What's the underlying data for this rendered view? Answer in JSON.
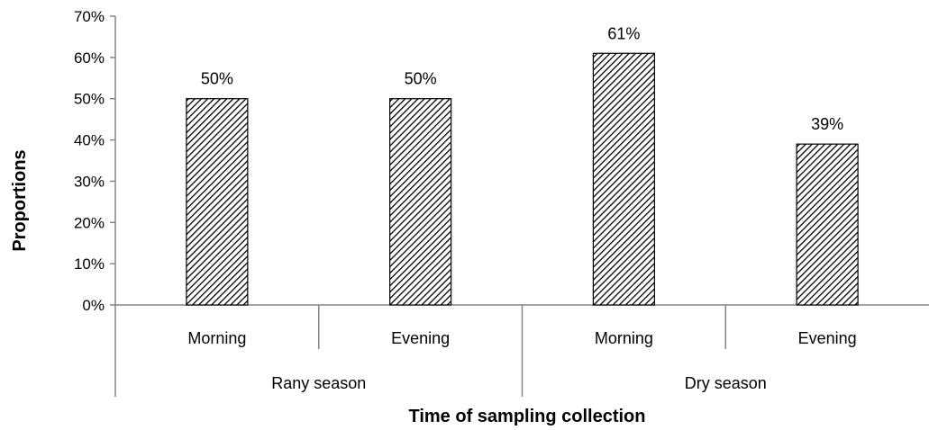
{
  "chart_data": {
    "type": "bar",
    "categories": [
      "Morning",
      "Evening",
      "Morning",
      "Evening"
    ],
    "groups": [
      {
        "label": "Rany season",
        "span": [
          0,
          1
        ]
      },
      {
        "label": "Dry season",
        "span": [
          2,
          3
        ]
      }
    ],
    "values": [
      0.5,
      0.5,
      0.61,
      0.39
    ],
    "data_labels": [
      "50%",
      "50%",
      "61%",
      "39%"
    ],
    "y_ticks": [
      "0%",
      "10%",
      "20%",
      "30%",
      "40%",
      "50%",
      "60%",
      "70%"
    ],
    "ylim": [
      0,
      0.7
    ],
    "xlabel": "Time of sampling collection",
    "ylabel": "Proportions",
    "bar_fill": "diagonal hatch",
    "bar_color": "#000000",
    "grid": false,
    "legend": "none"
  }
}
